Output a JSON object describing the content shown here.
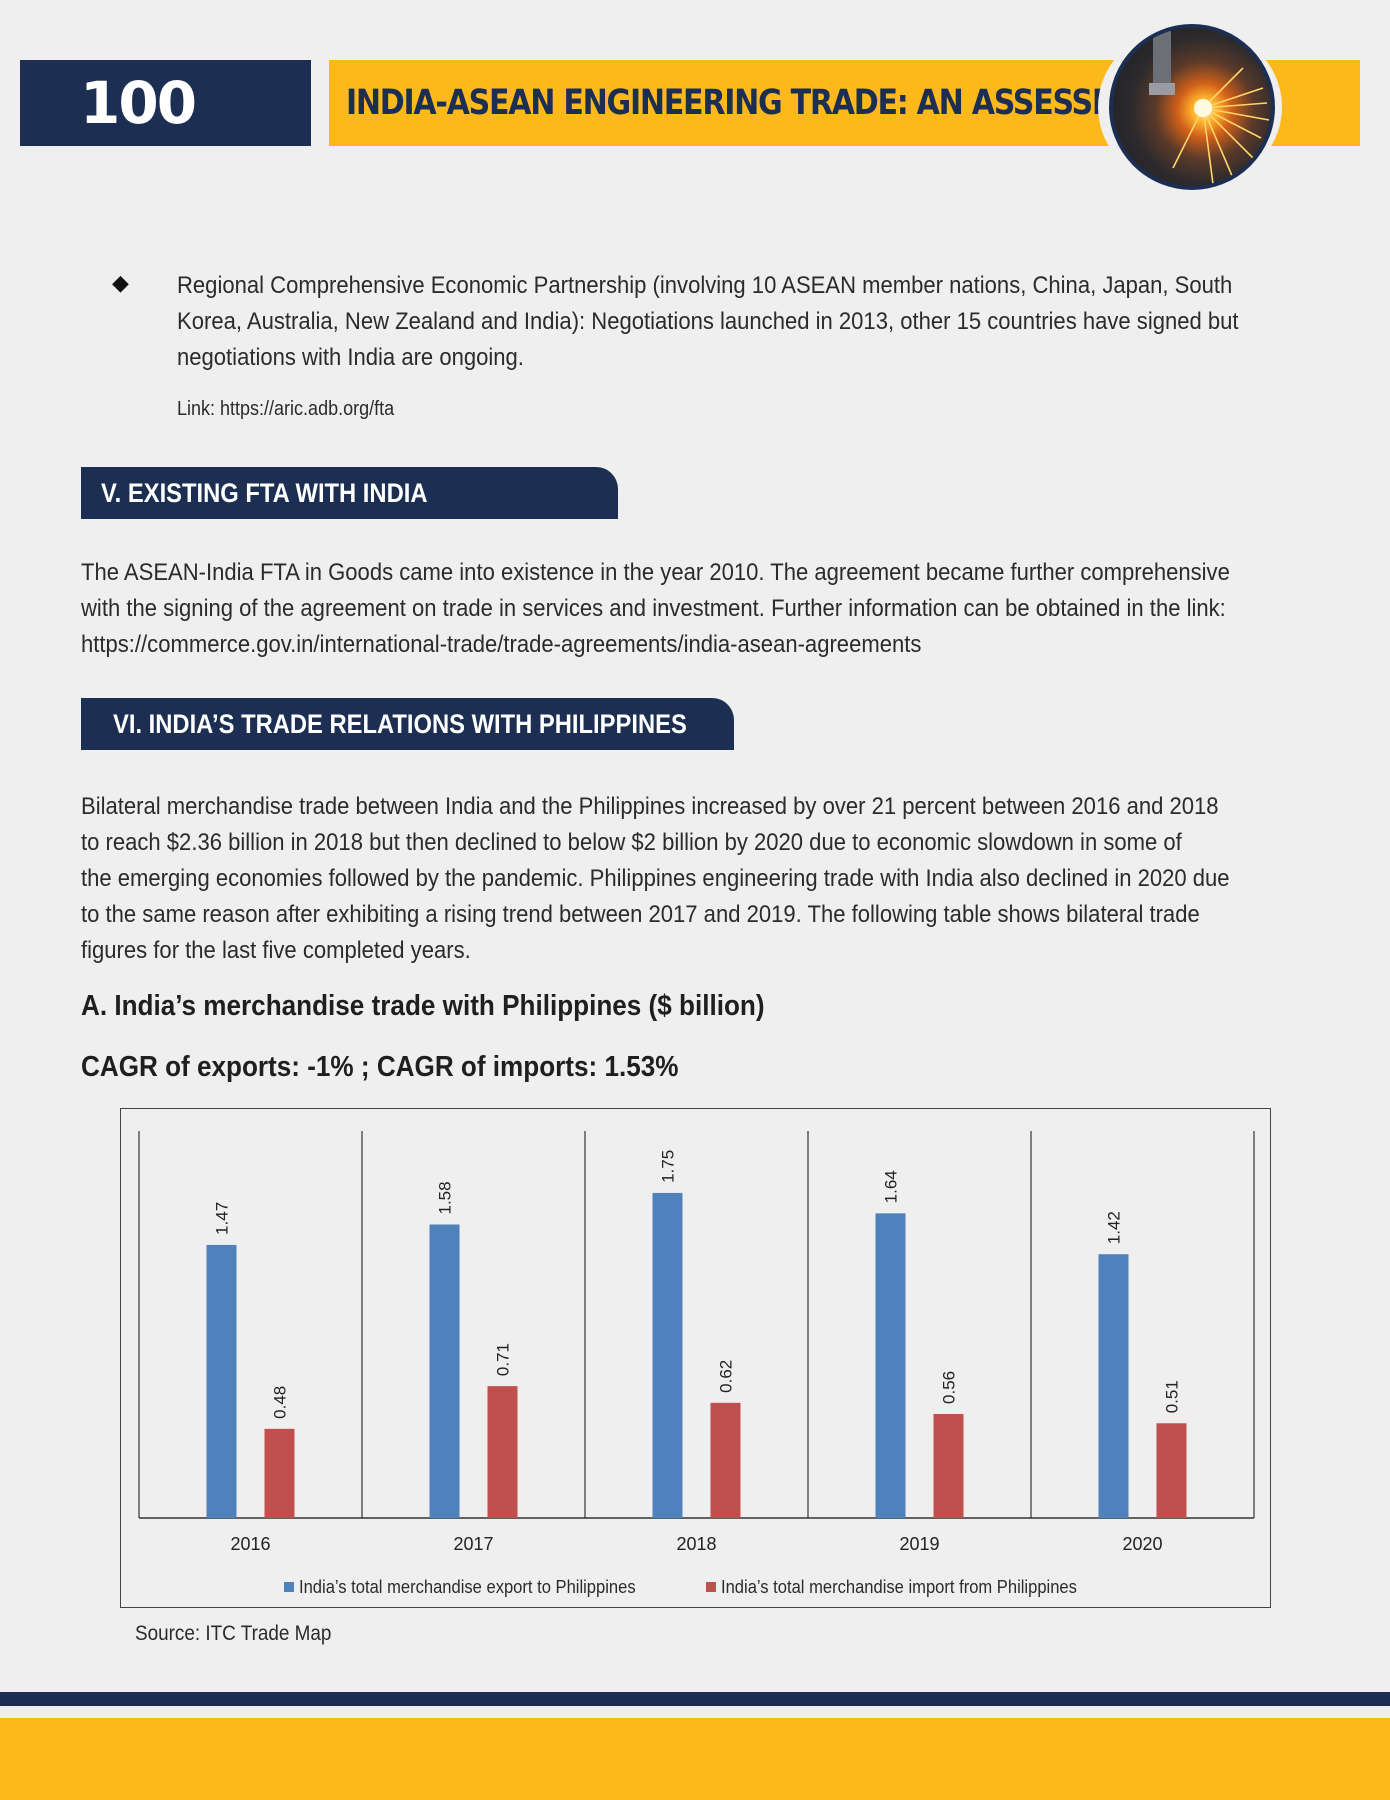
{
  "header": {
    "page_number": "100",
    "title": "INDIA-ASEAN ENGINEERING TRADE: AN ASSESSMENT"
  },
  "bullet": {
    "lines": [
      "Regional Comprehensive Economic Partnership (involving 10 ASEAN member nations, China, Japan, South",
      "Korea, Australia, New Zealand and India): Negotiations launched in 2013, other 15 countries have signed but",
      "negotiations with India are ongoing."
    ],
    "link": "Link: https://aric.adb.org/fta"
  },
  "section5": {
    "heading": "V. EXISTING FTA WITH INDIA",
    "lines": [
      "The ASEAN-India FTA in Goods came into existence in the year 2010. The agreement became further comprehensive",
      "with the signing of the agreement on trade in services and investment. Further information can be obtained in the link:",
      "https://commerce.gov.in/international-trade/trade-agreements/india-asean-agreements"
    ]
  },
  "section6": {
    "heading": "VI. INDIA’S TRADE RELATIONS WITH PHILIPPINES",
    "lines": [
      "Bilateral merchandise trade between India and the Philippines increased by over 21 percent between 2016 and 2018",
      "to reach $2.36 billion in 2018 but then declined to below $2 billion by 2020 due to economic slowdown in some of",
      "the emerging economies followed by the pandemic. Philippines engineering trade with India also declined in 2020 due",
      "to the same reason after exhibiting a rising trend between 2017 and 2019. The following table shows bilateral trade",
      "figures for the last five completed years."
    ],
    "chart_title": "A. India’s merchandise trade with Philippines ($ billion)",
    "cagr": "CAGR of exports: -1% ; CAGR of imports: 1.53%",
    "source": "Source: ITC Trade Map"
  },
  "chart_data": {
    "type": "bar",
    "categories": [
      "2016",
      "2017",
      "2018",
      "2019",
      "2020"
    ],
    "series": [
      {
        "name": "India’s total merchandise export to Philippines",
        "values": [
          1.47,
          1.58,
          1.75,
          1.64,
          1.42
        ],
        "color": "#4f81bd"
      },
      {
        "name": "India’s total merchandise import from Philippines",
        "values": [
          0.48,
          0.71,
          0.62,
          0.56,
          0.51
        ],
        "color": "#c0504d"
      }
    ],
    "ylim": [
      0,
      2
    ],
    "grid": false,
    "legend": "bottom",
    "data_labels": true
  },
  "colors": {
    "navy": "#1c2f52",
    "gold": "#fdb91c"
  }
}
